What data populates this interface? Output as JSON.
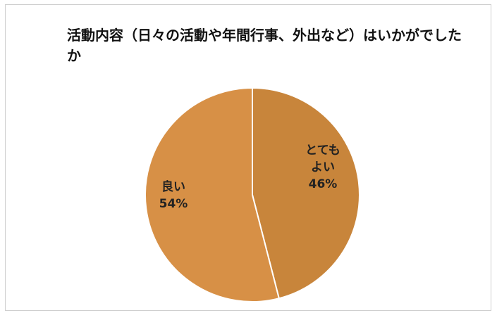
{
  "chart_data": {
    "type": "pie",
    "title": "活動内容（日々の活動や年間行事、外出など）はいかがでしたか",
    "slices": [
      {
        "label_lines": [
          "とても",
          "よい"
        ],
        "value": 46,
        "value_label": "46%",
        "color": "#c8853b"
      },
      {
        "label_lines": [
          "良い"
        ],
        "value": 54,
        "value_label": "54%",
        "color": "#d79046"
      }
    ],
    "legend": "none",
    "slice_border_color": "#ffffff"
  }
}
